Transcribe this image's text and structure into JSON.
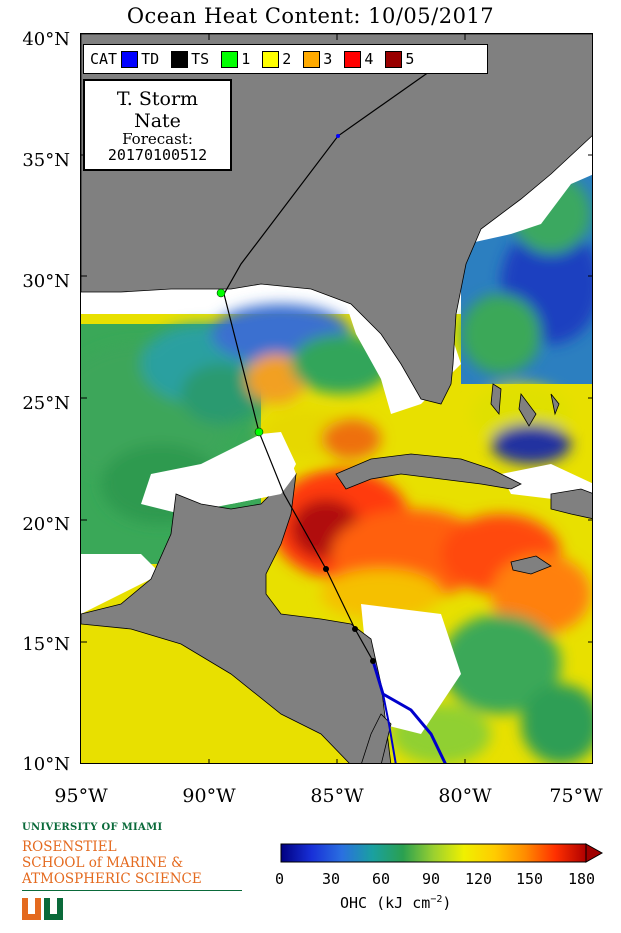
{
  "title": "Ocean Heat Content: 10/05/2017",
  "legend": {
    "cat_label": "CAT",
    "items": [
      {
        "label": "TD",
        "color": "#0000ff"
      },
      {
        "label": "TS",
        "color": "#000000"
      },
      {
        "label": "1",
        "color": "#00ff00"
      },
      {
        "label": "2",
        "color": "#ffff00"
      },
      {
        "label": "3",
        "color": "#ffaa00"
      },
      {
        "label": "4",
        "color": "#ff0000"
      },
      {
        "label": "5",
        "color": "#990000"
      }
    ]
  },
  "storm": {
    "type": "T. Storm",
    "name": "Nate",
    "forecast_label": "Forecast:",
    "forecast_id": "20170100512"
  },
  "axes": {
    "lat_labels": [
      "40°N",
      "35°N",
      "30°N",
      "25°N",
      "20°N",
      "15°N",
      "10°N"
    ],
    "lon_labels": [
      "95°W",
      "90°W",
      "85°W",
      "80°W",
      "75°W"
    ]
  },
  "colorbar": {
    "ticks": [
      "0",
      "30",
      "60",
      "90",
      "120",
      "150",
      "180"
    ],
    "label": "OHC (kJ cm",
    "label_exp": "−2",
    "label_close": ")",
    "range": [
      0,
      180
    ]
  },
  "logo": {
    "university": "UNIVERSITY OF MIAMI",
    "school_line1": "ROSENSTIEL",
    "school_line2": "SCHOOL of MARINE &",
    "school_line3": "ATMOSPHERIC SCIENCE",
    "green": "#0a6a3a",
    "orange": "#e46a1f"
  },
  "colors": {
    "land": "#808080",
    "no_data": "#ffffff",
    "track": "#000000",
    "forecast_cone": "#0000cc"
  }
}
